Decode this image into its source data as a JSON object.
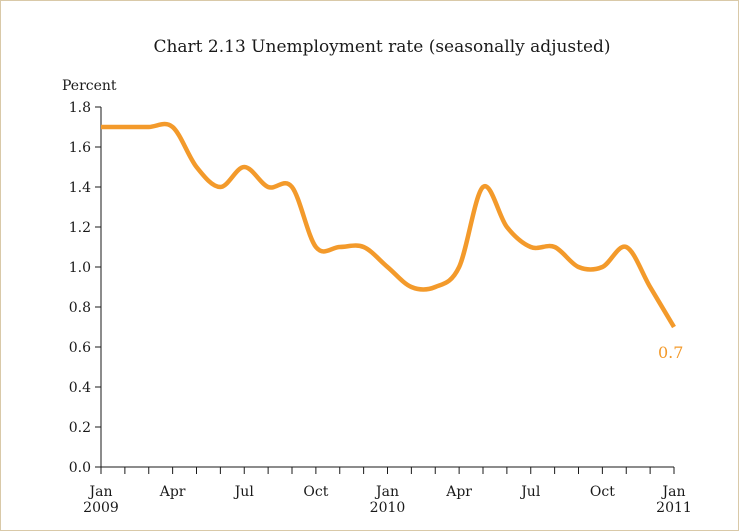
{
  "chart_data": {
    "type": "line",
    "title": "Chart 2.13  Unemployment rate (seasonally adjusted)",
    "unit_label": "Percent",
    "xlabel": "",
    "ylabel": "",
    "ylim": [
      0.0,
      1.8
    ],
    "y_ticks": [
      "0.0",
      "0.2",
      "0.4",
      "0.6",
      "0.8",
      "1.0",
      "1.2",
      "1.4",
      "1.6",
      "1.8"
    ],
    "x_range": [
      0,
      24
    ],
    "x_tick_labels": [
      {
        "label": "Jan",
        "year": "2009"
      },
      {
        "label": "Apr",
        "year": ""
      },
      {
        "label": "Jul",
        "year": ""
      },
      {
        "label": "Oct",
        "year": ""
      },
      {
        "label": "Jan",
        "year": "2010"
      },
      {
        "label": "Apr",
        "year": ""
      },
      {
        "label": "Jul",
        "year": ""
      },
      {
        "label": "Oct",
        "year": ""
      },
      {
        "label": "Jan",
        "year": "2011"
      }
    ],
    "grid": false,
    "line_color": "#f39a2b",
    "end_label": "0.7",
    "x": [
      0,
      1,
      2,
      3,
      4,
      5,
      6,
      7,
      8,
      9,
      10,
      11,
      12,
      13,
      14,
      15,
      16,
      17,
      18,
      19,
      20,
      21,
      22,
      23,
      24
    ],
    "values": [
      1.7,
      1.7,
      1.7,
      1.7,
      1.5,
      1.4,
      1.5,
      1.4,
      1.4,
      1.1,
      1.1,
      1.1,
      1.0,
      0.9,
      0.9,
      1.0,
      1.4,
      1.2,
      1.1,
      1.1,
      1.0,
      1.0,
      1.1,
      0.9,
      0.7
    ]
  }
}
